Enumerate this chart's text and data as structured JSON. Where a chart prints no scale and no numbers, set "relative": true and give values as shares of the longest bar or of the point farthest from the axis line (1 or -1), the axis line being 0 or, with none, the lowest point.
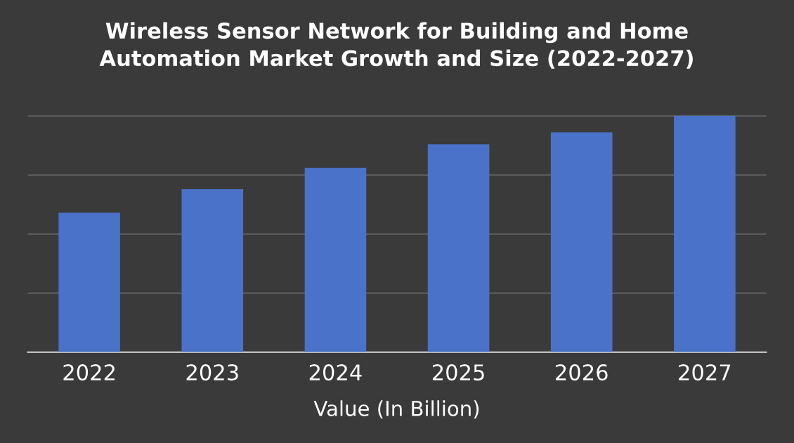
{
  "chart_data": {
    "type": "bar",
    "title": "Wireless Sensor Network for Building and Home\nAutomation Market Growth and Size (2022-2027)",
    "xlabel": "Value (In Billion)",
    "categories": [
      "2022",
      "2023",
      "2024",
      "2025",
      "2026",
      "2027"
    ],
    "values": [
      0.59,
      0.69,
      0.78,
      0.88,
      0.93,
      1
    ],
    "color": "#4a72c8",
    "relative": true,
    "grid": "y"
  }
}
